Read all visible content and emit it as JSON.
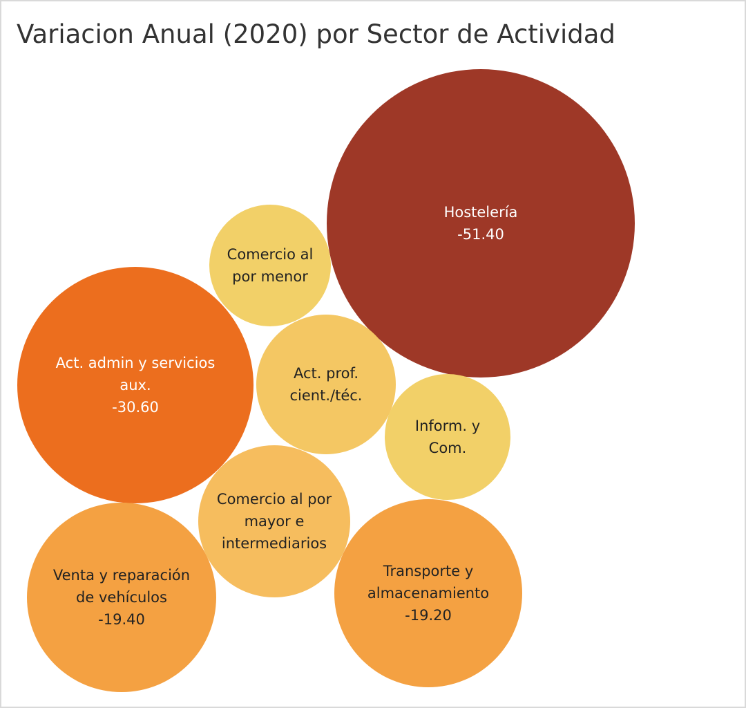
{
  "title": "Variacion Anual (2020) por Sector de Actividad",
  "chart_data": {
    "type": "bubble",
    "title": "Variacion Anual (2020) por Sector de Actividad",
    "series": [
      {
        "name": "Hostelería",
        "lines": [
          "Hostelería"
        ],
        "value": -51.4,
        "value_label": "-51.40",
        "color": "#9e3827",
        "text_color": "#ffffff"
      },
      {
        "name": "Act. admin y servicios aux.",
        "lines": [
          "Act. admin y servicios",
          "aux."
        ],
        "value": -30.6,
        "value_label": "-30.60",
        "color": "#ec6e1e",
        "text_color": "#ffffff"
      },
      {
        "name": "Venta y reparación de vehículos",
        "lines": [
          "Venta y reparación",
          "de vehículos"
        ],
        "value": -19.4,
        "value_label": "-19.40",
        "color": "#f4a142",
        "text_color": "#222222"
      },
      {
        "name": "Transporte y almacenamiento",
        "lines": [
          "Transporte y",
          "almacenamiento"
        ],
        "value": -19.2,
        "value_label": "-19.20",
        "color": "#f4a142",
        "text_color": "#222222"
      },
      {
        "name": "Comercio al por mayor e intermediarios",
        "lines": [
          "Comercio al por",
          "mayor e",
          "intermediarios"
        ],
        "value_label": "",
        "color": "#f6bd5e",
        "text_color": "#222222"
      },
      {
        "name": "Act. prof. cient./téc.",
        "lines": [
          "Act. prof.",
          "cient./téc."
        ],
        "value_label": "",
        "color": "#f4c763",
        "text_color": "#222222"
      },
      {
        "name": "Comercio al por menor",
        "lines": [
          "Comercio al",
          "por menor"
        ],
        "value_label": "",
        "color": "#f2d068",
        "text_color": "#222222"
      },
      {
        "name": "Inform. y Com.",
        "lines": [
          "Inform. y",
          "Com."
        ],
        "value_label": "",
        "color": "#f2d068",
        "text_color": "#222222"
      }
    ]
  }
}
